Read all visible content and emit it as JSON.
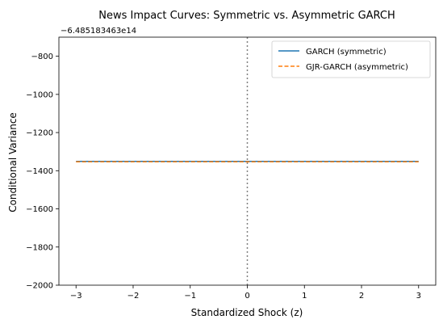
{
  "chart_data": {
    "type": "line",
    "title": "News Impact Curves: Symmetric vs. Asymmetric GARCH",
    "xlabel": "Standardized Shock (z)",
    "ylabel": "Conditional Variance",
    "y_offset_label": "−6.485183463e14",
    "xlim": [
      -3.3,
      3.3
    ],
    "ylim": [
      -2000,
      -700
    ],
    "x_ticks": [
      -3,
      -2,
      -1,
      0,
      1,
      2,
      3
    ],
    "x_tick_labels": [
      "−3",
      "−2",
      "−1",
      "0",
      "1",
      "2",
      "3"
    ],
    "y_ticks": [
      -2000,
      -1800,
      -1600,
      -1400,
      -1200,
      -1000,
      -800
    ],
    "y_tick_labels": [
      "−2000",
      "−1800",
      "−1600",
      "−1400",
      "−1200",
      "−1000",
      "−800"
    ],
    "grid": false,
    "legend_position": "top-right",
    "reference_line": {
      "x": 0,
      "style": "dotted",
      "color": "#808080"
    },
    "series": [
      {
        "name": "GARCH (symmetric)",
        "x": [
          -3,
          3
        ],
        "y": [
          -1351,
          -1351
        ],
        "color": "#1f77b4",
        "style": "solid"
      },
      {
        "name": "GJR-GARCH (asymmetric)",
        "x": [
          -3,
          3
        ],
        "y": [
          -1353,
          -1353
        ],
        "color": "#ff7f0e",
        "style": "dashed"
      }
    ]
  }
}
